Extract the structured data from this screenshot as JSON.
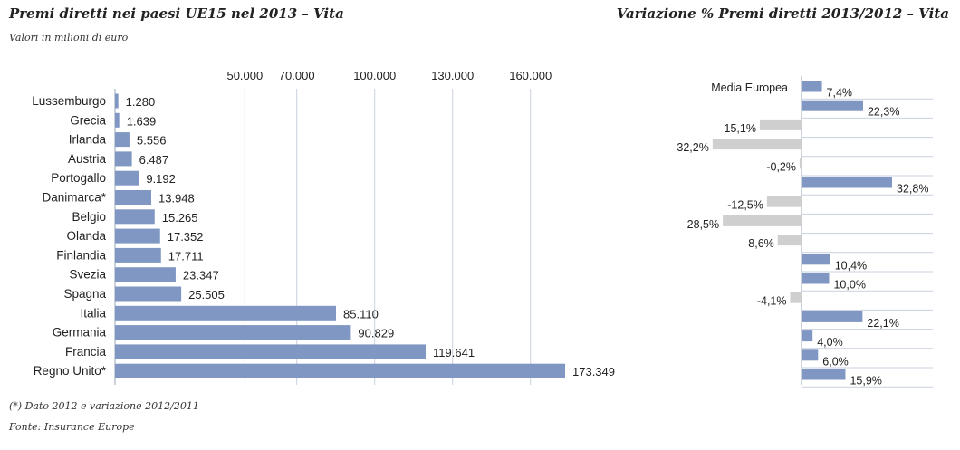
{
  "left_title": "Premi diretti nei paesi UE15 nel 2013 – Vita",
  "subtitle": "Valori in milioni di euro",
  "right_title": "Variazione % Premi diretti 2013/2012 – Vita",
  "footnote": "(*) Dato 2012 e variazione 2012/2011",
  "source": "Fonte: Insurance Europe",
  "colors": {
    "bar": "#7f97c2",
    "positive": "#7f97c2",
    "negative": "#cfcfcf",
    "grid": "#c9d1df",
    "axis": "#9aa5b8"
  },
  "chart_data": [
    {
      "type": "bar",
      "orientation": "horizontal",
      "title": "Premi diretti nei paesi UE15 nel 2013 – Vita",
      "subtitle": "Valori in milioni di euro",
      "categories": [
        "Lussemburgo",
        "Grecia",
        "Irlanda",
        "Austria",
        "Portogallo",
        "Danimarca*",
        "Belgio",
        "Olanda",
        "Finlandia",
        "Svezia",
        "Spagna",
        "Italia",
        "Germania",
        "Francia",
        "Regno Unito*"
      ],
      "values": [
        1280,
        1639,
        5556,
        6487,
        9192,
        13948,
        15265,
        17352,
        17711,
        23347,
        25505,
        85110,
        90829,
        119641,
        173349
      ],
      "value_labels": [
        "1.280",
        "1.639",
        "5.556",
        "6.487",
        "9.192",
        "13.948",
        "15.265",
        "17.352",
        "17.711",
        "23.347",
        "25.505",
        "85.110",
        "90.829",
        "119.641",
        "173.349"
      ],
      "xticks": [
        50000,
        70000,
        100000,
        130000,
        160000
      ],
      "xtick_labels": [
        "50.000",
        "70.000",
        "100.000",
        "130.000",
        "160.000"
      ],
      "xlim": [
        0,
        180000
      ],
      "grid": true
    },
    {
      "type": "bar",
      "orientation": "horizontal",
      "title": "Variazione % Premi diretti 2013/2012 – Vita",
      "categories": [
        "Media Europea",
        "Lussemburgo",
        "Grecia",
        "Irlanda",
        "Austria",
        "Portogallo",
        "Danimarca*",
        "Belgio",
        "Olanda",
        "Finlandia",
        "Svezia",
        "Spagna",
        "Italia",
        "Germania",
        "Francia",
        "Regno Unito*"
      ],
      "values": [
        7.4,
        22.3,
        -15.1,
        -32.2,
        -0.2,
        32.8,
        -12.5,
        -28.5,
        -8.6,
        10.4,
        10.0,
        -4.1,
        22.1,
        4.0,
        6.0,
        15.9
      ],
      "value_labels": [
        "7,4%",
        "22,3%",
        "-15,1%",
        "-32,2%",
        "-0,2%",
        "32,8%",
        "-12,5%",
        "-28,5%",
        "-8,6%",
        "10,4%",
        "10,0%",
        "-4,1%",
        "22,1%",
        "4,0%",
        "6,0%",
        "15,9%"
      ],
      "grid": true
    }
  ]
}
